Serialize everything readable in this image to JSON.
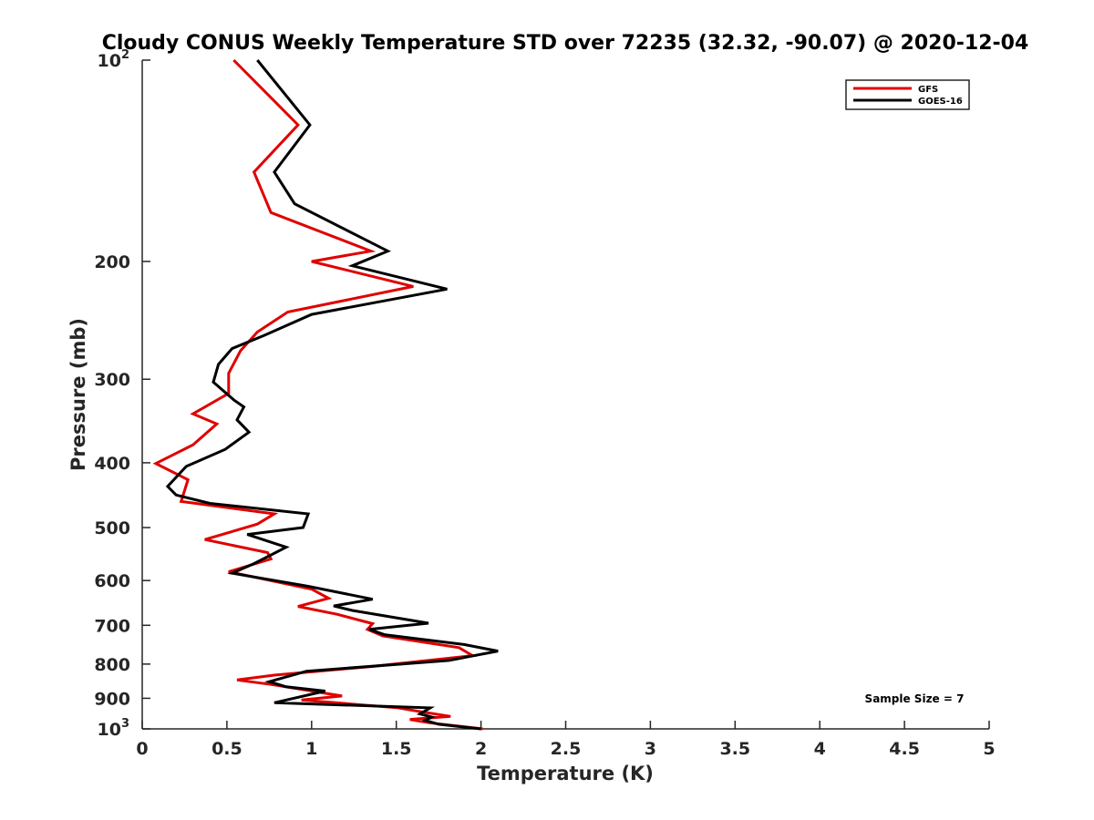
{
  "chart_data": {
    "type": "line",
    "title": "Cloudy CONUS Weekly Temperature STD over 72235 (32.32, -90.07) @ 2020-12-04",
    "xlabel": "Temperature (K)",
    "ylabel": "Pressure (mb)",
    "xlim": [
      0,
      5
    ],
    "ylim": [
      100,
      1000
    ],
    "yscale": "log",
    "y_reversed": true,
    "grid": false,
    "x_ticks": [
      0,
      0.5,
      1,
      1.5,
      2,
      2.5,
      3,
      3.5,
      4,
      4.5,
      5
    ],
    "x_tick_labels": [
      "0",
      "0.5",
      "1",
      "1.5",
      "2",
      "2.5",
      "3",
      "3.5",
      "4",
      "4.5",
      "5"
    ],
    "y_ticks": [
      {
        "value": 100,
        "base": "10",
        "exp": "2"
      },
      {
        "value": 200,
        "label": "200"
      },
      {
        "value": 300,
        "label": "300"
      },
      {
        "value": 400,
        "label": "400"
      },
      {
        "value": 500,
        "label": "500"
      },
      {
        "value": 600,
        "label": "600"
      },
      {
        "value": 700,
        "label": "700"
      },
      {
        "value": 800,
        "label": "800"
      },
      {
        "value": 900,
        "label": "900"
      },
      {
        "value": 1000,
        "base": "10",
        "exp": "3"
      }
    ],
    "legend": {
      "position": "top-right"
    },
    "annotation": "Sample Size = 7",
    "series": [
      {
        "name": "GFS",
        "color": "#e00000",
        "points": [
          [
            0.54,
            100
          ],
          [
            0.92,
            125
          ],
          [
            0.66,
            147
          ],
          [
            0.76,
            169
          ],
          [
            1.35,
            193
          ],
          [
            1.0,
            200
          ],
          [
            1.6,
            218
          ],
          [
            0.86,
            238
          ],
          [
            0.68,
            255
          ],
          [
            0.58,
            272
          ],
          [
            0.51,
            294
          ],
          [
            0.51,
            315
          ],
          [
            0.3,
            338
          ],
          [
            0.44,
            350
          ],
          [
            0.3,
            376
          ],
          [
            0.08,
            401
          ],
          [
            0.27,
            424
          ],
          [
            0.23,
            457
          ],
          [
            0.78,
            477
          ],
          [
            0.68,
            494
          ],
          [
            0.37,
            521
          ],
          [
            0.74,
            545
          ],
          [
            0.76,
            557
          ],
          [
            0.51,
            582
          ],
          [
            1.0,
            618
          ],
          [
            1.1,
            638
          ],
          [
            0.92,
            656
          ],
          [
            1.15,
            674
          ],
          [
            1.36,
            696
          ],
          [
            1.33,
            710
          ],
          [
            1.42,
            726
          ],
          [
            1.87,
            756
          ],
          [
            1.95,
            777
          ],
          [
            1.35,
            807
          ],
          [
            0.78,
            831
          ],
          [
            0.56,
            845
          ],
          [
            0.76,
            858
          ],
          [
            1.18,
            893
          ],
          [
            0.94,
            905
          ],
          [
            1.51,
            930
          ],
          [
            1.64,
            942
          ],
          [
            1.82,
            958
          ],
          [
            1.58,
            968
          ],
          [
            1.69,
            979
          ],
          [
            2.01,
            1000
          ]
        ]
      },
      {
        "name": "GOES-16",
        "color": "#000000",
        "points": [
          [
            0.68,
            100
          ],
          [
            0.99,
            125
          ],
          [
            0.78,
            147
          ],
          [
            0.9,
            164
          ],
          [
            1.45,
            193
          ],
          [
            1.24,
            203
          ],
          [
            1.8,
            220
          ],
          [
            1.0,
            240
          ],
          [
            0.72,
            258
          ],
          [
            0.53,
            270
          ],
          [
            0.45,
            285
          ],
          [
            0.42,
            303
          ],
          [
            0.54,
            322
          ],
          [
            0.6,
            330
          ],
          [
            0.56,
            345
          ],
          [
            0.63,
            360
          ],
          [
            0.49,
            382
          ],
          [
            0.26,
            405
          ],
          [
            0.15,
            434
          ],
          [
            0.2,
            447
          ],
          [
            0.4,
            460
          ],
          [
            0.98,
            477
          ],
          [
            0.95,
            500
          ],
          [
            0.62,
            512
          ],
          [
            0.85,
            535
          ],
          [
            0.66,
            566
          ],
          [
            0.53,
            585
          ],
          [
            0.98,
            612
          ],
          [
            1.36,
            640
          ],
          [
            1.13,
            655
          ],
          [
            1.24,
            665
          ],
          [
            1.69,
            695
          ],
          [
            1.34,
            710
          ],
          [
            1.43,
            723
          ],
          [
            1.9,
            748
          ],
          [
            2.1,
            765
          ],
          [
            1.81,
            790
          ],
          [
            0.97,
            820
          ],
          [
            0.75,
            850
          ],
          [
            0.85,
            865
          ],
          [
            1.08,
            878
          ],
          [
            0.78,
            914
          ],
          [
            1.7,
            930
          ],
          [
            1.64,
            950
          ],
          [
            1.71,
            960
          ],
          [
            1.67,
            971
          ],
          [
            1.75,
            984
          ],
          [
            2.0,
            1000
          ]
        ]
      }
    ]
  }
}
